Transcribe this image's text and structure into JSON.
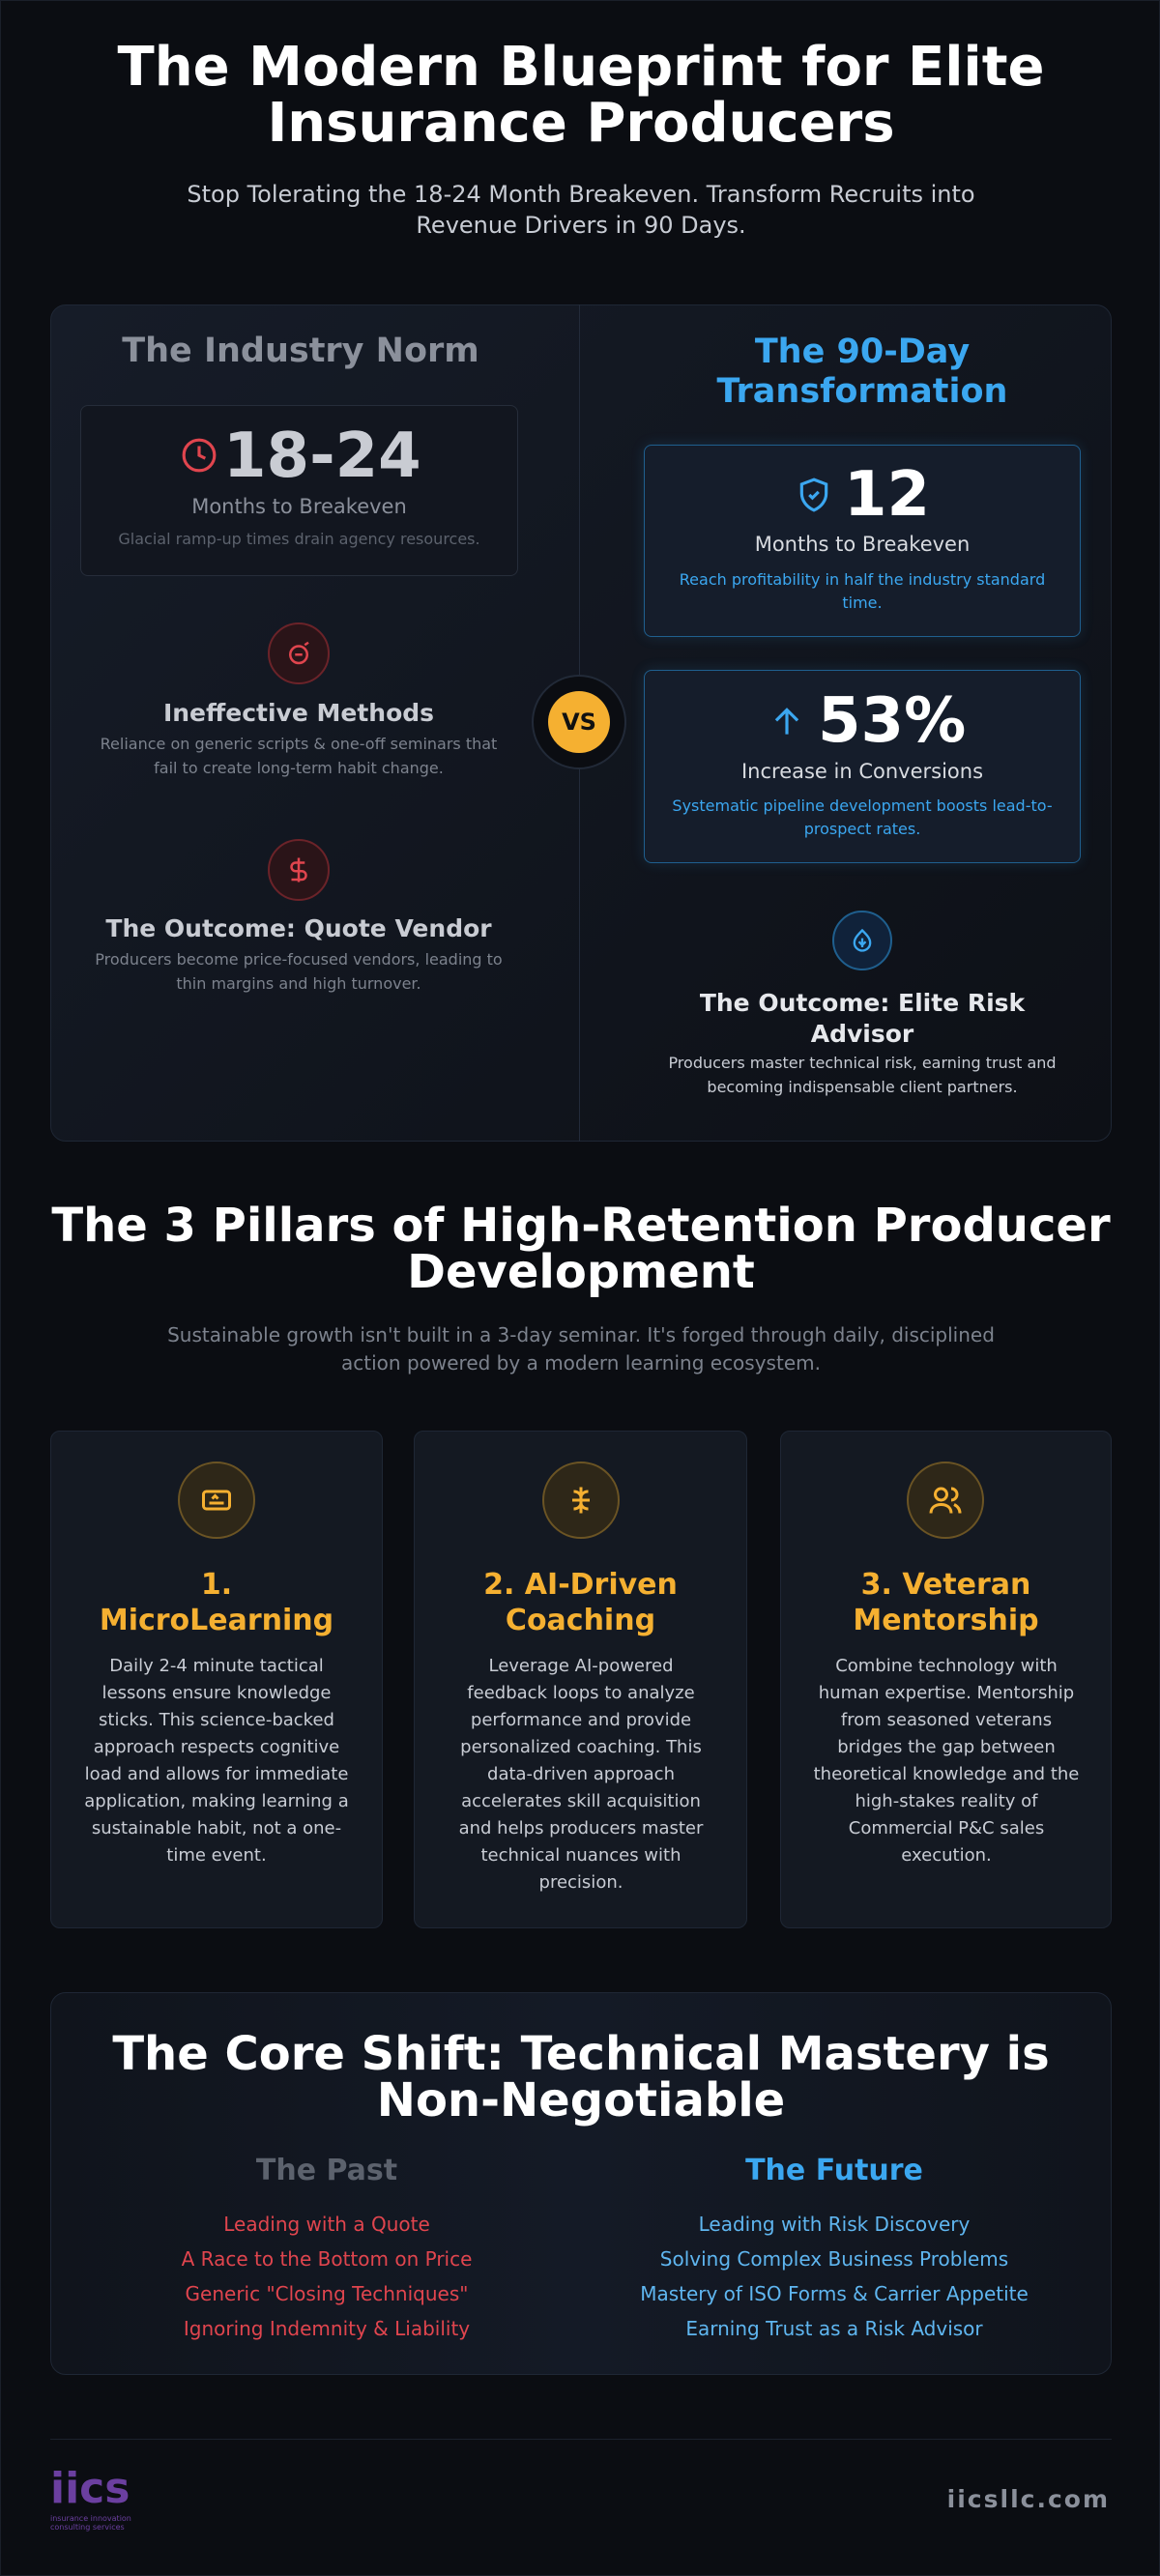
{
  "header": {
    "title": "The Modern Blueprint for Elite Insurance Producers",
    "subtitle": "Stop Tolerating the 18-24 Month Breakeven. Transform Recruits into Revenue Drivers in 90 Days."
  },
  "comparison": {
    "left": {
      "heading": "The Industry Norm",
      "stat": {
        "value": "18-24",
        "label": "Months to Breakeven",
        "desc": "Glacial ramp-up times drain agency resources."
      },
      "items": [
        {
          "title": "Ineffective Methods",
          "desc": "Reliance on generic scripts & one-off seminars that fail to create long-term habit change."
        },
        {
          "title": "The Outcome: Quote Vendor",
          "desc": "Producers become price-focused vendors, leading to thin margins and high turnover."
        }
      ]
    },
    "vs": "VS",
    "right": {
      "heading": "The 90-Day Transformation",
      "stats": [
        {
          "value": "12",
          "label": "Months to Breakeven",
          "desc": "Reach profitability in half the industry standard time."
        },
        {
          "value": "53%",
          "label": "Increase in Conversions",
          "desc": "Systematic pipeline development boosts lead-to-prospect rates."
        }
      ],
      "outcome": {
        "title": "The Outcome: Elite Risk Advisor",
        "desc": "Producers master technical risk, earning trust and becoming indispensable client partners."
      }
    }
  },
  "pillars": {
    "title": "The 3 Pillars of High-Retention Producer Development",
    "subtitle": "Sustainable growth isn't built in a 3-day seminar. It's forged through daily, disciplined action powered by a modern learning ecosystem.",
    "cards": [
      {
        "title": "1. MicroLearning",
        "body": "Daily 2-4 minute tactical lessons ensure knowledge sticks. This science-backed approach respects cognitive load and allows for immediate application, making learning a sustainable habit, not a one-time event."
      },
      {
        "title": "2. AI-Driven Coaching",
        "body": "Leverage AI-powered feedback loops to analyze performance and provide personalized coaching. This data-driven approach accelerates skill acquisition and helps producers master technical nuances with precision."
      },
      {
        "title": "3. Veteran Mentorship",
        "body": "Combine technology with human expertise. Mentorship from seasoned veterans bridges the gap between theoretical knowledge and the high-stakes reality of Commercial P&C sales execution."
      }
    ]
  },
  "core_shift": {
    "title": "The Core Shift: Technical Mastery is Non-Negotiable",
    "past": {
      "heading": "The Past",
      "items": [
        "Leading with a Quote",
        "A Race to the Bottom on Price",
        "Generic \"Closing Techniques\"",
        "Ignoring Indemnity & Liability"
      ]
    },
    "future": {
      "heading": "The Future",
      "items": [
        "Leading with Risk Discovery",
        "Solving Complex Business Problems",
        "Mastery of ISO Forms & Carrier Appetite",
        "Earning Trust as a Risk Advisor"
      ]
    }
  },
  "footer": {
    "logo": "iics",
    "logo_sub": "insurance innovation consulting services",
    "url": "iicsllc.com"
  }
}
